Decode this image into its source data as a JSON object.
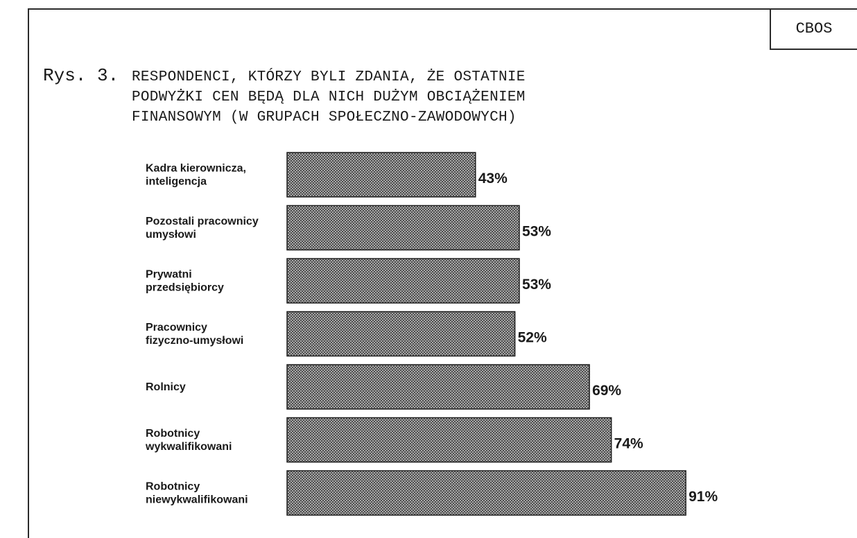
{
  "header": {
    "brand": "CBOS",
    "figure_number": "Rys. 3.",
    "title_lines": [
      "RESPONDENCI, KTÓRZY BYLI ZDANIA, ŻE OSTATNIE",
      "PODWYŻKI CEN BĘDĄ DLA NICH DUŻYM OBCIĄŻENIEM",
      "FINANSOWYM (W GRUPACH SPOŁECZNO-ZAWODOWYCH)"
    ]
  },
  "chart_data": {
    "type": "bar",
    "orientation": "horizontal",
    "title": "RESPONDENCI, KTÓRZY BYLI ZDANIA, ŻE OSTATNIE PODWYŻKI CEN BĘDĄ DLA NICH DUŻYM OBCIĄŻENIEM FINANSOWYM (W GRUPACH SPOŁECZNO-ZAWODOWYCH)",
    "categories": [
      [
        "Kadra kierownicza,",
        "inteligencja"
      ],
      [
        "Pozostali pracownicy",
        "umysłowi"
      ],
      [
        "Prywatni",
        "przedsiębiorcy"
      ],
      [
        "Pracownicy",
        "fizyczno-umysłowi"
      ],
      [
        "Rolnicy"
      ],
      [
        "Robotnicy",
        "wykwalifikowani"
      ],
      [
        "Robotnicy",
        "niewykwalifikowani"
      ]
    ],
    "values": [
      43,
      53,
      53,
      52,
      69,
      74,
      91
    ],
    "value_labels": [
      "43%",
      "53%",
      "53%",
      "52%",
      "69%",
      "74%",
      "91%"
    ],
    "unit": "%",
    "xlim": [
      0,
      100
    ],
    "grid": false,
    "legend": "none",
    "bar_fill": "#9a9a9a",
    "bar_pattern": "crosshatch"
  }
}
